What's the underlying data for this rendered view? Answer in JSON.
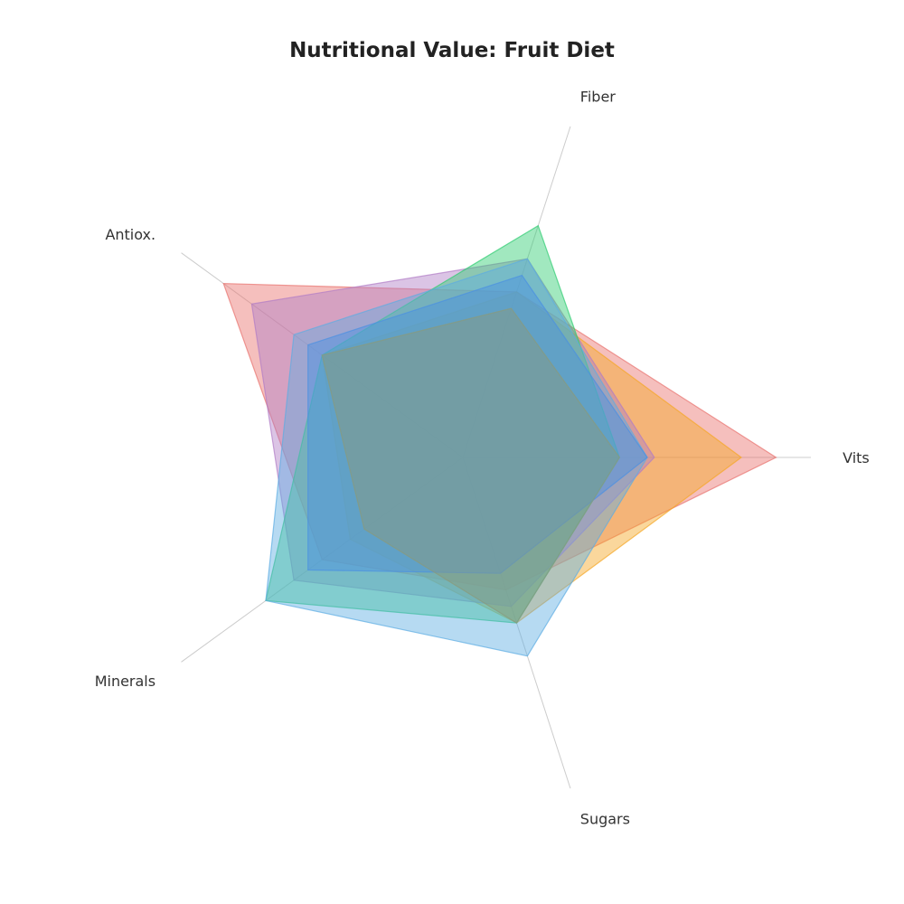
{
  "chart_data": {
    "type": "radar",
    "title": "Nutritional Value: Fruit Diet",
    "axes": [
      "Vits",
      "Fiber",
      "Antiox.",
      "Minerals",
      "Sugars"
    ],
    "rmax": 1.0,
    "grid": false,
    "legend": "none",
    "axis_color": "#cccccc",
    "series": [
      {
        "color": "#e8726d",
        "values": [
          0.9,
          0.5,
          0.85,
          0.5,
          0.4
        ]
      },
      {
        "color": "#f5a623",
        "values": [
          0.8,
          0.5,
          0.5,
          0.4,
          0.5
        ]
      },
      {
        "color": "#b07cc6",
        "values": [
          0.55,
          0.6,
          0.75,
          0.6,
          0.45
        ]
      },
      {
        "color": "#2ecc71",
        "values": [
          0.45,
          0.7,
          0.5,
          0.7,
          0.5
        ]
      },
      {
        "color": "#5dade2",
        "values": [
          0.53,
          0.6,
          0.6,
          0.7,
          0.6
        ]
      },
      {
        "color": "#4a90e2",
        "values": [
          0.53,
          0.55,
          0.55,
          0.55,
          0.35
        ]
      },
      {
        "color": "#8a9a7a",
        "values": [
          0.45,
          0.45,
          0.5,
          0.35,
          0.5
        ]
      }
    ]
  }
}
